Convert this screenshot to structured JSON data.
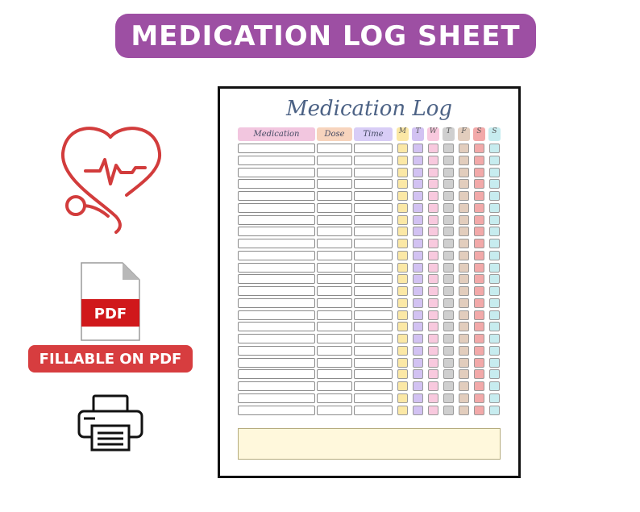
{
  "banner": {
    "title": "MEDICATION LOG SHEET"
  },
  "fillable_badge": {
    "label": "FILLABLE ON PDF"
  },
  "pdf_icon": {
    "label": "PDF"
  },
  "sheet": {
    "title": "Medication Log",
    "columns": {
      "medication": "Medication",
      "dose": "Dose",
      "time": "Time"
    },
    "days": [
      "M",
      "T",
      "W",
      "T",
      "F",
      "S",
      "S"
    ],
    "row_count": 23
  },
  "colors": {
    "banner": "#9d4fa3",
    "fillable_badge": "#d73d3f",
    "heart_icon": "#d23c3c",
    "pdf_band": "#d0181b",
    "medication_header": "#f2c6df",
    "dose_header": "#f7d4bd",
    "time_header": "#d8cdf6",
    "day_colors": [
      "#fbe8a6",
      "#d2c2f2",
      "#f8c9de",
      "#cfcfcf",
      "#e2cdbd",
      "#f2a9a9",
      "#c7ecef"
    ],
    "notes_box": "#fff8dc"
  }
}
